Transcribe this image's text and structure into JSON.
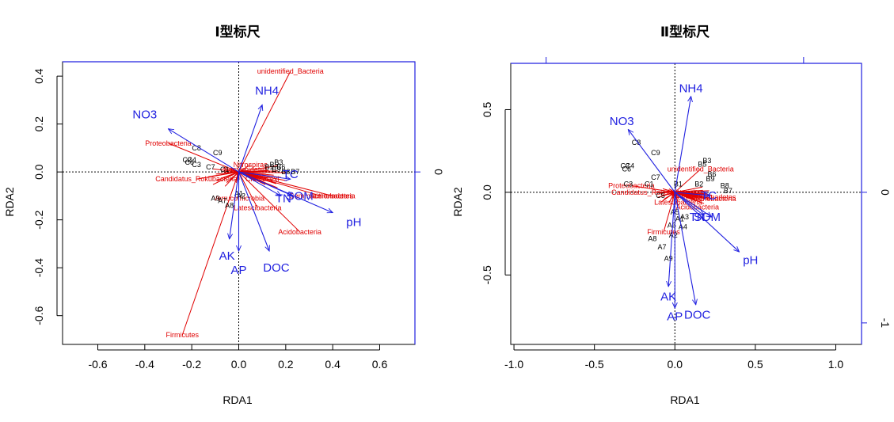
{
  "chart_data": [
    {
      "type": "scatter",
      "title": "Ⅰ型标尺",
      "xlabel": "RDA1",
      "ylabel": "RDA2",
      "xlim": [
        -0.75,
        0.75
      ],
      "ylim": [
        -0.72,
        0.46
      ],
      "xticks": [
        "-0.6",
        "-0.4",
        "-0.2",
        "0.0",
        "0.2",
        "0.4",
        "0.6"
      ],
      "yticks": [
        "-0.6",
        "-0.4",
        "-0.2",
        "0.0",
        "0.2",
        "0.4"
      ],
      "right_axis_ticks": [
        "0"
      ],
      "env_vectors": [
        {
          "name": "NO3",
          "x": -0.3,
          "y": 0.18,
          "lx": -0.4,
          "ly": 0.24
        },
        {
          "name": "NH4",
          "x": 0.1,
          "y": 0.28,
          "lx": 0.12,
          "ly": 0.34
        },
        {
          "name": "pH",
          "x": 0.4,
          "y": -0.17,
          "lx": 0.49,
          "ly": -0.21
        },
        {
          "name": "DOC",
          "x": 0.13,
          "y": -0.33,
          "lx": 0.16,
          "ly": -0.4
        },
        {
          "name": "AK",
          "x": -0.04,
          "y": -0.28,
          "lx": -0.05,
          "ly": -0.35
        },
        {
          "name": "AP",
          "x": 0.0,
          "y": -0.33,
          "lx": 0.0,
          "ly": -0.41
        },
        {
          "name": "TC",
          "x": 0.22,
          "y": -0.03,
          "lx": 0.22,
          "ly": -0.01
        },
        {
          "name": "SOM",
          "x": 0.23,
          "y": -0.1,
          "lx": 0.26,
          "ly": -0.1
        },
        {
          "name": "TN",
          "x": 0.18,
          "y": -0.1,
          "lx": 0.19,
          "ly": -0.11
        }
      ],
      "species": [
        {
          "name": "unidentified_Bacteria",
          "x": 0.22,
          "y": 0.42
        },
        {
          "name": "Proteobacteria",
          "x": -0.3,
          "y": 0.12
        },
        {
          "name": "Acidobacteria",
          "x": 0.26,
          "y": -0.25
        },
        {
          "name": "Firmicutes",
          "x": -0.24,
          "y": -0.68
        },
        {
          "name": "Gemmatimonadetes",
          "x": 0.35,
          "y": -0.1
        },
        {
          "name": "Actinobacteria",
          "x": 0.4,
          "y": -0.1
        },
        {
          "name": "Candidatus_Rokubacteria",
          "x": -0.18,
          "y": -0.03
        },
        {
          "name": "Chloroflexi",
          "x": 0.1,
          "y": -0.03
        },
        {
          "name": "Nitrospirae",
          "x": 0.05,
          "y": 0.03
        },
        {
          "name": "Bacteroidetes",
          "x": 0.03,
          "y": 0.01
        },
        {
          "name": "Latescibacteria",
          "x": 0.08,
          "y": -0.15
        },
        {
          "name": "Verrucomicrobia",
          "x": 0.0,
          "y": -0.11
        }
      ],
      "sites": [
        {
          "name": "C8",
          "x": -0.18,
          "y": 0.1
        },
        {
          "name": "C9",
          "x": -0.09,
          "y": 0.08
        },
        {
          "name": "C2",
          "x": -0.22,
          "y": 0.05
        },
        {
          "name": "C4",
          "x": -0.2,
          "y": 0.05
        },
        {
          "name": "C6",
          "x": -0.21,
          "y": 0.04
        },
        {
          "name": "C3",
          "x": -0.18,
          "y": 0.03
        },
        {
          "name": "C7",
          "x": -0.12,
          "y": 0.02
        },
        {
          "name": "C1",
          "x": -0.06,
          "y": 0.01
        },
        {
          "name": "B1",
          "x": 0.13,
          "y": 0.02
        },
        {
          "name": "B3",
          "x": 0.17,
          "y": 0.04
        },
        {
          "name": "B5",
          "x": 0.15,
          "y": 0.03
        },
        {
          "name": "B6",
          "x": 0.18,
          "y": 0.02
        },
        {
          "name": "B9",
          "x": 0.16,
          "y": 0.01
        },
        {
          "name": "B8",
          "x": 0.2,
          "y": 0.0
        },
        {
          "name": "B7",
          "x": 0.24,
          "y": 0.0
        },
        {
          "name": "A9",
          "x": -0.1,
          "y": -0.11
        },
        {
          "name": "A7",
          "x": -0.07,
          "y": -0.12
        },
        {
          "name": "A8",
          "x": -0.04,
          "y": -0.14
        },
        {
          "name": "A1",
          "x": 0.0,
          "y": -0.09
        },
        {
          "name": "A2",
          "x": 0.01,
          "y": -0.1
        }
      ]
    },
    {
      "type": "scatter",
      "title": "Ⅱ型标尺",
      "xlabel": "RDA1",
      "ylabel": "RDA2",
      "xlim": [
        -1.02,
        1.16
      ],
      "ylim": [
        -0.92,
        0.78
      ],
      "xticks": [
        "-1.0",
        "-0.5",
        "0.0",
        "0.5",
        "1.0"
      ],
      "yticks": [
        "-0.5",
        "0.0",
        "0.5"
      ],
      "right_axis_ticks": [
        "0",
        "-1"
      ],
      "env_vectors": [
        {
          "name": "NO3",
          "x": -0.29,
          "y": 0.38,
          "lx": -0.33,
          "ly": 0.43
        },
        {
          "name": "NH4",
          "x": 0.1,
          "y": 0.58,
          "lx": 0.1,
          "ly": 0.63
        },
        {
          "name": "pH",
          "x": 0.4,
          "y": -0.36,
          "lx": 0.47,
          "ly": -0.41
        },
        {
          "name": "DOC",
          "x": 0.13,
          "y": -0.68,
          "lx": 0.14,
          "ly": -0.74
        },
        {
          "name": "AK",
          "x": -0.04,
          "y": -0.57,
          "lx": -0.04,
          "ly": -0.63
        },
        {
          "name": "AP",
          "x": 0.0,
          "y": -0.7,
          "lx": 0.0,
          "ly": -0.75
        },
        {
          "name": "TC",
          "x": 0.22,
          "y": -0.02,
          "lx": 0.21,
          "ly": -0.02
        },
        {
          "name": "SOM",
          "x": 0.23,
          "y": -0.15,
          "lx": 0.2,
          "ly": -0.15
        },
        {
          "name": "TN",
          "x": 0.18,
          "y": -0.14,
          "lx": 0.14,
          "ly": -0.15
        }
      ],
      "species": [
        {
          "name": "unidentified_Bacteria",
          "x": 0.16,
          "y": 0.14
        },
        {
          "name": "Proteobacteria",
          "x": -0.27,
          "y": 0.04
        },
        {
          "name": "Firmicutes",
          "x": -0.07,
          "y": -0.24
        },
        {
          "name": "Acidobacteria",
          "x": 0.14,
          "y": -0.09
        },
        {
          "name": "Actinobacteria",
          "x": 0.24,
          "y": -0.04
        },
        {
          "name": "Latescibacteria",
          "x": 0.02,
          "y": -0.06
        },
        {
          "name": "Candidatus_Rokubacteria",
          "x": -0.14,
          "y": 0.0
        },
        {
          "name": "Chloroflexi",
          "x": 0.1,
          "y": -0.02
        },
        {
          "name": "Nitrospirae",
          "x": 0.08,
          "y": 0.0
        },
        {
          "name": "Gemmatimonadetes",
          "x": 0.18,
          "y": -0.03
        }
      ],
      "sites": [
        {
          "name": "C8",
          "x": -0.24,
          "y": 0.3
        },
        {
          "name": "C9",
          "x": -0.12,
          "y": 0.24
        },
        {
          "name": "C2",
          "x": -0.31,
          "y": 0.16
        },
        {
          "name": "C4",
          "x": -0.28,
          "y": 0.16
        },
        {
          "name": "C6",
          "x": -0.3,
          "y": 0.14
        },
        {
          "name": "C7",
          "x": -0.12,
          "y": 0.09
        },
        {
          "name": "C3",
          "x": -0.29,
          "y": 0.05
        },
        {
          "name": "C1",
          "x": -0.16,
          "y": 0.05
        },
        {
          "name": "C5",
          "x": -0.09,
          "y": -0.02
        },
        {
          "name": "B1",
          "x": 0.02,
          "y": 0.05
        },
        {
          "name": "B3",
          "x": 0.2,
          "y": 0.19
        },
        {
          "name": "B5",
          "x": 0.17,
          "y": 0.17
        },
        {
          "name": "B6",
          "x": 0.23,
          "y": 0.11
        },
        {
          "name": "B9",
          "x": 0.22,
          "y": 0.08
        },
        {
          "name": "B2",
          "x": 0.15,
          "y": 0.05
        },
        {
          "name": "B8",
          "x": 0.31,
          "y": 0.04
        },
        {
          "name": "B7",
          "x": 0.33,
          "y": 0.01
        },
        {
          "name": "A1",
          "x": 0.03,
          "y": -0.16
        },
        {
          "name": "A3",
          "x": 0.06,
          "y": -0.15
        },
        {
          "name": "A5",
          "x": 0.0,
          "y": -0.12
        },
        {
          "name": "A4",
          "x": 0.05,
          "y": -0.21
        },
        {
          "name": "A6",
          "x": -0.02,
          "y": -0.2
        },
        {
          "name": "A2",
          "x": -0.01,
          "y": -0.26
        },
        {
          "name": "A8",
          "x": -0.14,
          "y": -0.28
        },
        {
          "name": "A7",
          "x": -0.08,
          "y": -0.33
        },
        {
          "name": "A9",
          "x": -0.04,
          "y": -0.4
        }
      ]
    }
  ]
}
